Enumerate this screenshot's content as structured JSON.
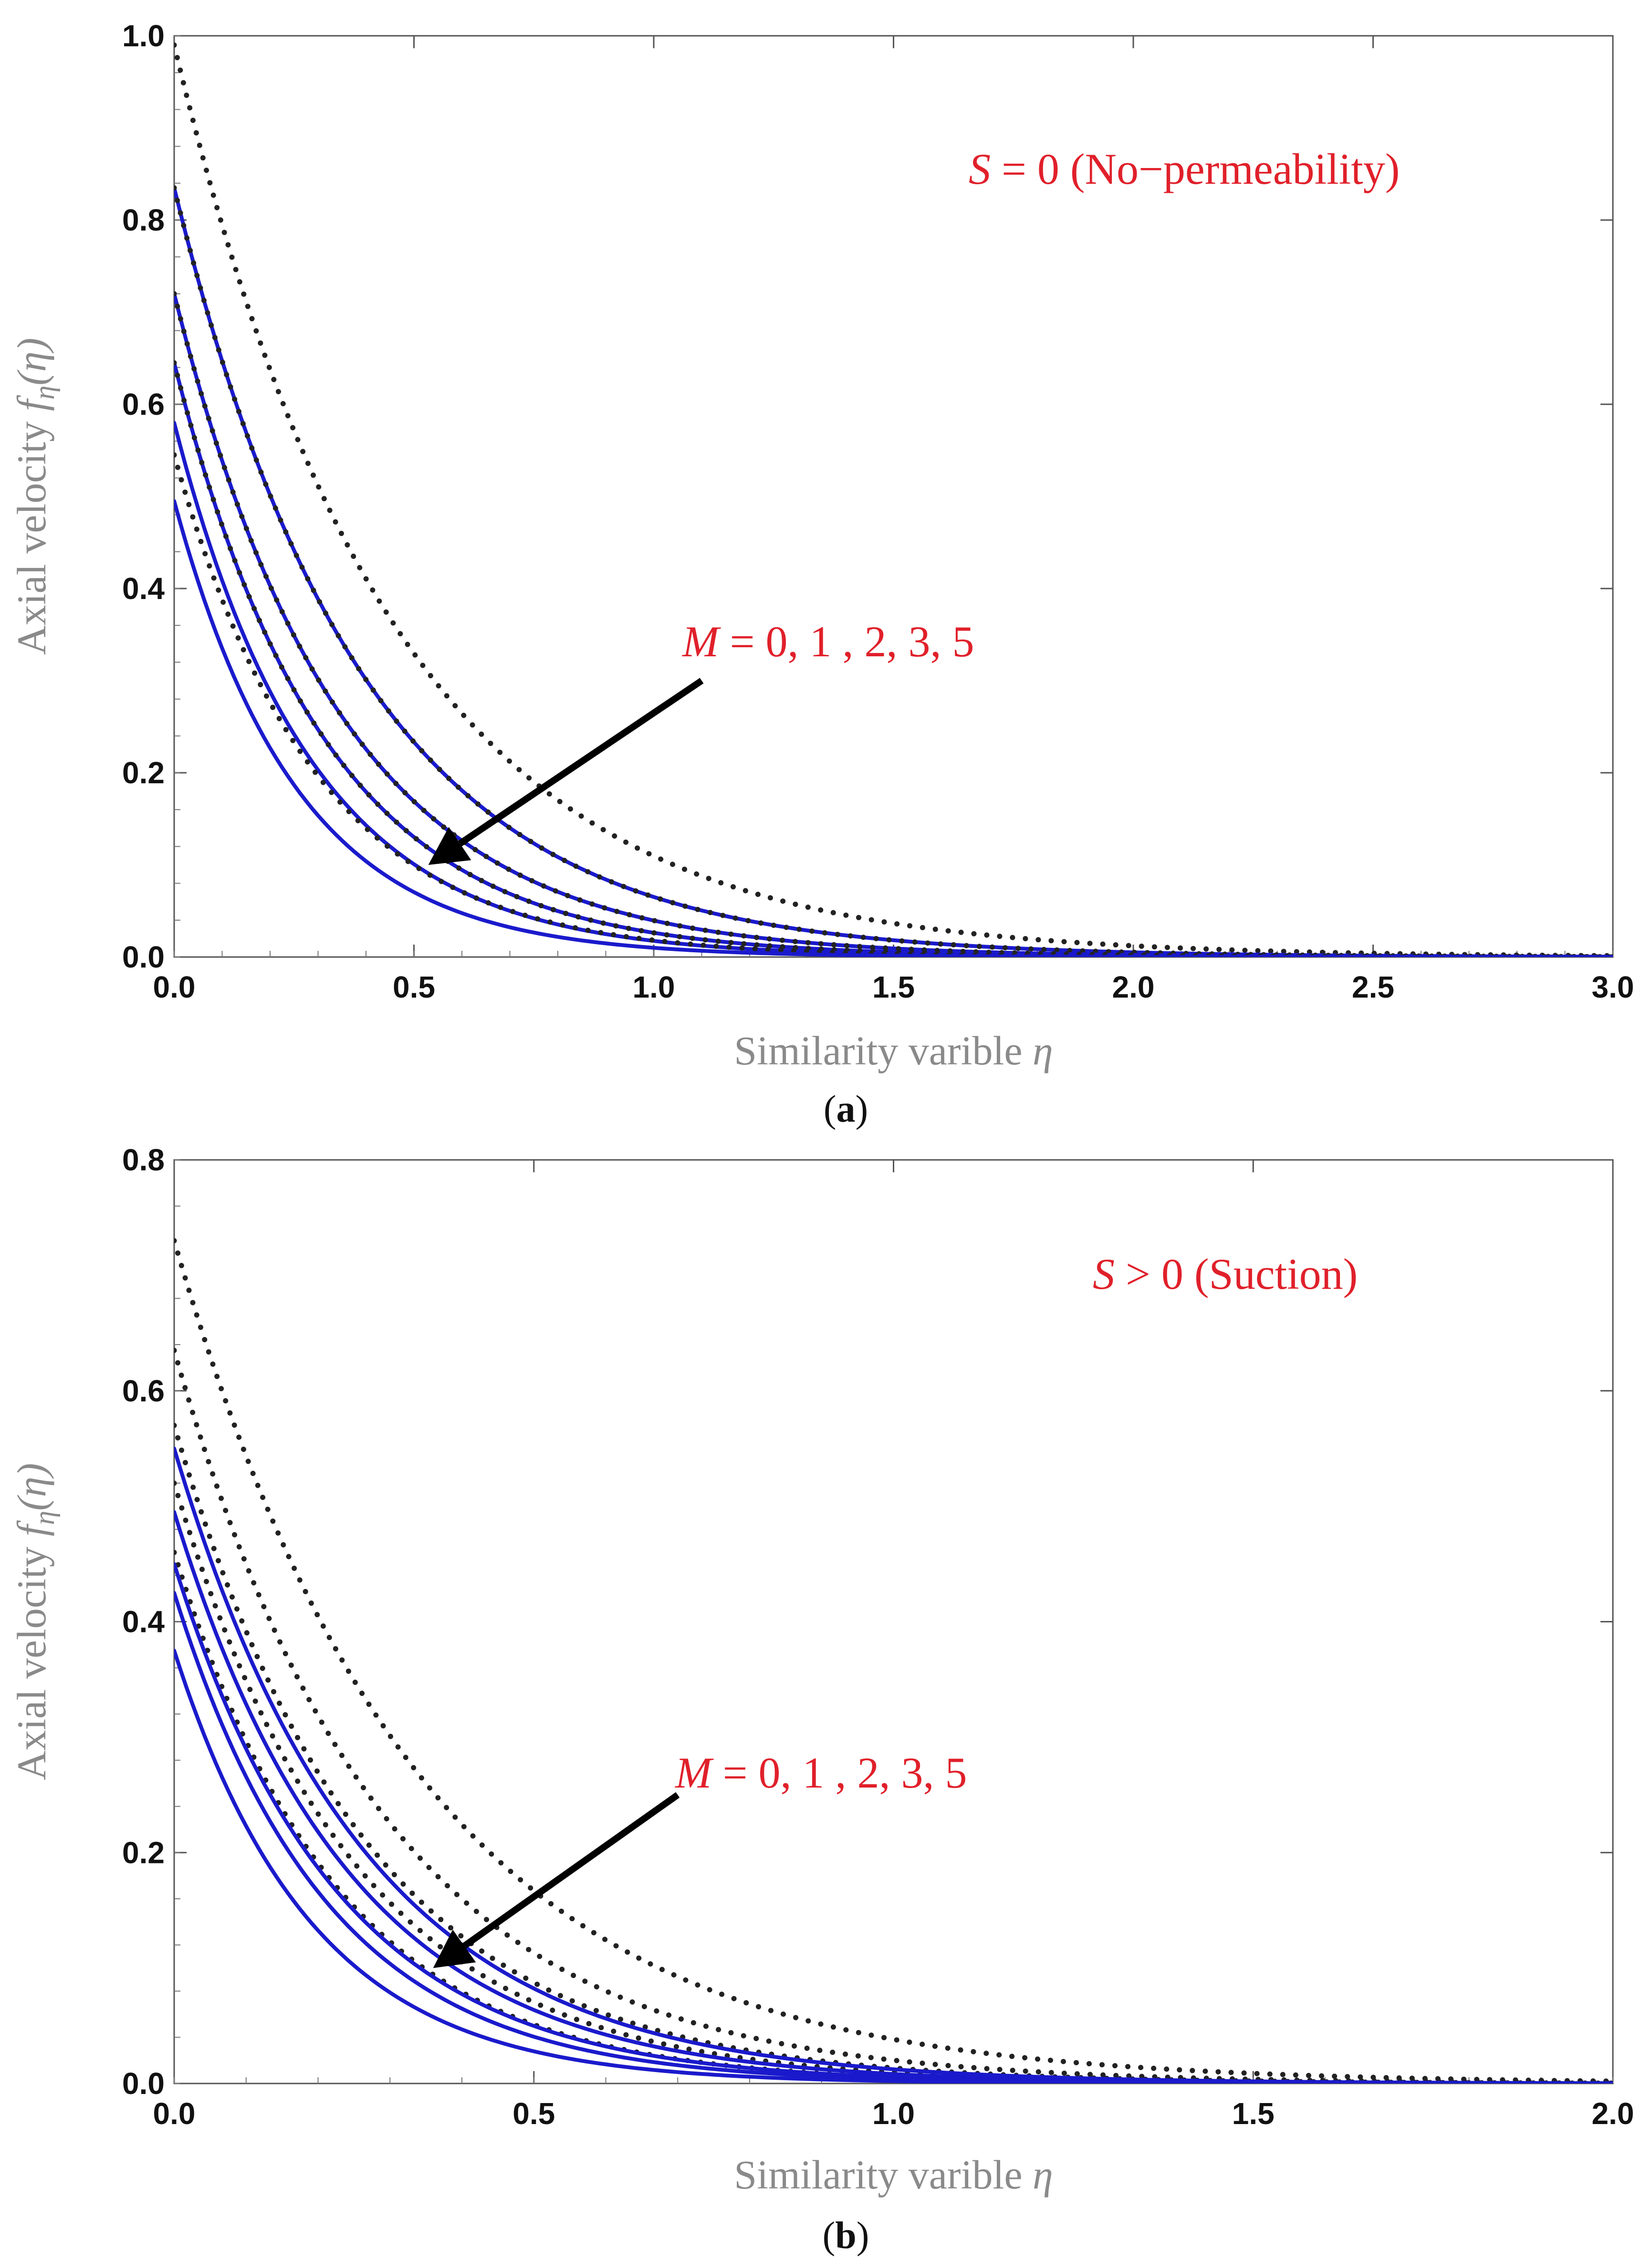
{
  "chart_data": [
    {
      "type": "line",
      "panel": "(a)",
      "caption_letter": "a",
      "xlabel": "Similarity varible",
      "xlabel_symbol": "η",
      "ylabel": "Axial velocity",
      "ylabel_symbol": "f",
      "ylabel_sub": "η",
      "ylabel_arg": "(η)",
      "xlim": [
        0,
        3
      ],
      "ylim": [
        0,
        1
      ],
      "x_ticks": [
        "0.0",
        "0.5",
        "1.0",
        "1.5",
        "2.0",
        "2.5",
        "3.0"
      ],
      "y_ticks": [
        "0.0",
        "0.2",
        "0.4",
        "0.6",
        "0.8",
        "1.0"
      ],
      "annotation_condition": {
        "symbol": "S",
        "rel": " = 0",
        "text": "(No−permeability)"
      },
      "annotation_m": {
        "symbol": "M",
        "text": " = 0, 1 , 2,  3, 5"
      },
      "arrow": {
        "from": [
          1.1,
          0.3
        ],
        "to": [
          0.53,
          0.1
        ]
      },
      "colors": {
        "solid": "#1a1acc",
        "dotted": "#222222",
        "annotation": "#e0202a"
      },
      "series": [
        {
          "name": "M=0 dotted",
          "style": "dotted",
          "f0": 0.99,
          "k": 2.2
        },
        {
          "name": "M=0",
          "style": "solid",
          "f0": 0.835,
          "k": 2.55
        },
        {
          "name": "M=1 dotted",
          "style": "dotted",
          "f0": 0.835,
          "k": 2.55
        },
        {
          "name": "M=1",
          "style": "solid",
          "f0": 0.72,
          "k": 2.9
        },
        {
          "name": "M=2 dotted",
          "style": "dotted",
          "f0": 0.72,
          "k": 2.9
        },
        {
          "name": "M=2",
          "style": "solid",
          "f0": 0.645,
          "k": 3.2
        },
        {
          "name": "M=3 dotted",
          "style": "dotted",
          "f0": 0.645,
          "k": 3.2
        },
        {
          "name": "M=3",
          "style": "solid",
          "f0": 0.58,
          "k": 3.5
        },
        {
          "name": "M=5 dotted",
          "style": "dotted",
          "f0": 0.545,
          "k": 3.4
        },
        {
          "name": "M=5",
          "style": "solid",
          "f0": 0.495,
          "k": 3.9
        }
      ]
    },
    {
      "type": "line",
      "panel": "(b)",
      "caption_letter": "b",
      "xlabel": "Similarity varible",
      "xlabel_symbol": "η",
      "ylabel": "Axial velocity",
      "ylabel_symbol": "f",
      "ylabel_sub": "η",
      "ylabel_arg": "(η)",
      "xlim": [
        0,
        2
      ],
      "ylim": [
        0,
        0.8
      ],
      "x_ticks": [
        "0.0",
        "0.5",
        "1.0",
        "1.5",
        "2.0"
      ],
      "y_ticks": [
        "0.0",
        "0.2",
        "0.4",
        "0.6",
        "0.8"
      ],
      "annotation_condition": {
        "symbol": "S",
        "rel": " > 0",
        "text": "(Suction)"
      },
      "annotation_m": {
        "symbol": "M",
        "text": " = 0, 1 , 2,  3, 5"
      },
      "arrow": {
        "from": [
          0.7,
          0.25
        ],
        "to": [
          0.36,
          0.1
        ]
      },
      "colors": {
        "solid": "#1a1acc",
        "dotted": "#222222",
        "annotation": "#e0202a"
      },
      "series": [
        {
          "name": "M=0 dotted",
          "style": "dotted",
          "f0": 0.73,
          "k": 2.95
        },
        {
          "name": "M=1 dotted",
          "style": "dotted",
          "f0": 0.635,
          "k": 3.45
        },
        {
          "name": "M=2 dotted",
          "style": "dotted",
          "f0": 0.57,
          "k": 3.75
        },
        {
          "name": "M=3 dotted",
          "style": "dotted",
          "f0": 0.52,
          "k": 4.0
        },
        {
          "name": "M=5 dotted",
          "style": "dotted",
          "f0": 0.46,
          "k": 4.4
        },
        {
          "name": "M=0",
          "style": "solid",
          "f0": 0.55,
          "k": 3.8
        },
        {
          "name": "M=1",
          "style": "solid",
          "f0": 0.495,
          "k": 4.1
        },
        {
          "name": "M=2",
          "style": "solid",
          "f0": 0.45,
          "k": 4.4
        },
        {
          "name": "M=3",
          "style": "solid",
          "f0": 0.425,
          "k": 4.7
        },
        {
          "name": "M=5",
          "style": "solid",
          "f0": 0.375,
          "k": 5.2
        }
      ]
    }
  ]
}
